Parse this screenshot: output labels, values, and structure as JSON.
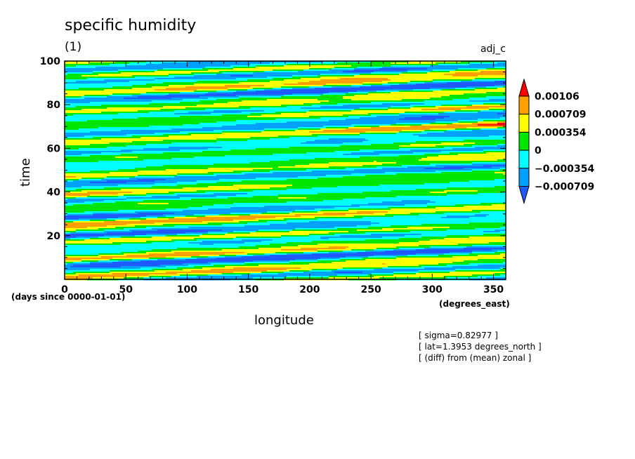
{
  "chart_data": {
    "type": "heatmap",
    "title": "specific humidity",
    "subtitle": "(1)",
    "variable": "adj_c",
    "xlabel": "longitude",
    "x_unit": "(degrees_east)",
    "ylabel": "time",
    "y_unit": "(days since 0000-01-01)",
    "xlim": [
      0,
      360
    ],
    "ylim": [
      0,
      100
    ],
    "x_ticks": [
      0,
      50,
      100,
      150,
      200,
      250,
      300,
      350
    ],
    "y_ticks": [
      20,
      40,
      60,
      80,
      100
    ],
    "levels": [
      -0.000709,
      -0.000354,
      0,
      0.000354,
      0.000709,
      0.00106
    ],
    "level_labels": [
      "0.00106",
      "0.000709",
      "0.000354",
      "0",
      "−0.000354",
      "−0.000709"
    ],
    "colors": [
      "#1e5aff",
      "#00a0ff",
      "#00ffff",
      "#00e600",
      "#ffff00",
      "#ffa000",
      "#ff0000"
    ],
    "field_pattern": "diagonal bands of alternating positive and negative anomaly, tilted upward toward larger longitude (eastward propagation)",
    "annotations": [
      "[ sigma=0.82977 ]",
      "[ lat=1.3953 degrees_north ]",
      "[ (diff) from (mean) zonal ]"
    ]
  }
}
